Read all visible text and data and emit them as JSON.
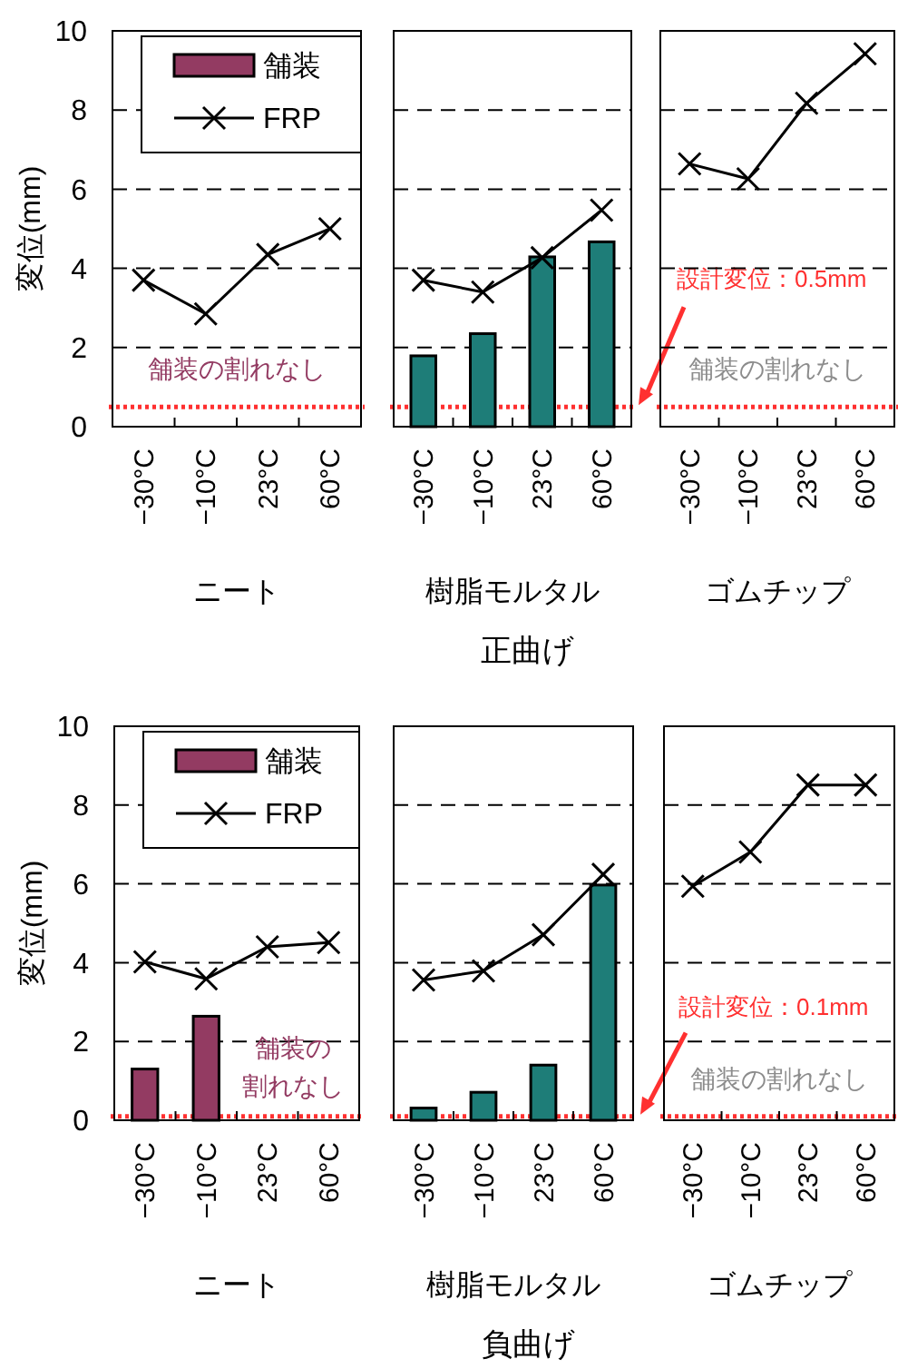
{
  "chart_data": [
    {
      "type": "bar",
      "categories": [
        "−30°C",
        "−10°C",
        "23°C",
        "60°C"
      ],
      "xlabel": "ニート",
      "ylabel": "変位(mm)",
      "ylim": [
        0,
        10
      ],
      "yticks": [
        0,
        2,
        4,
        6,
        8,
        10
      ],
      "grid": "y",
      "legend": "top left",
      "marker": "cross",
      "line_style": "solid",
      "series": [
        {
          "name": "舗装",
          "color": "#933b62",
          "values": [
            null,
            null,
            null,
            null
          ]
        },
        {
          "name": "FRP",
          "type": "line",
          "color": "#000000",
          "values": [
            3.7,
            2.85,
            4.35,
            5.0
          ]
        }
      ],
      "ref_lines": [
        {
          "axis": "y",
          "value": 0.5,
          "color": "#ff3030",
          "line_style": "dotted"
        }
      ],
      "annotations": [
        "舗装の割れなし"
      ]
    },
    {
      "type": "bar",
      "categories": [
        "−30°C",
        "−10°C",
        "23°C",
        "60°C"
      ],
      "xlabel": "樹脂モルタル",
      "title": "正曲げ",
      "ylim": [
        0,
        10
      ],
      "yticks": [
        0,
        2,
        4,
        6,
        8,
        10
      ],
      "tick_labels": "x",
      "grid": "y",
      "marker": "cross",
      "line_style": "solid",
      "series": [
        {
          "color": "#1e7d78",
          "values": [
            1.79,
            2.35,
            4.29,
            4.67
          ]
        },
        {
          "type": "line",
          "color": "#000000",
          "values": [
            3.7,
            3.4,
            4.27,
            5.47
          ]
        }
      ],
      "ref_lines": [
        {
          "axis": "y",
          "value": 0.5,
          "label": "設計変位：0.5mm",
          "color": "#ff3030",
          "line_style": "dotted"
        }
      ]
    },
    {
      "type": "line",
      "categories": [
        "−30°C",
        "−10°C",
        "23°C",
        "60°C"
      ],
      "xlabel": "ゴムチップ",
      "ylim": [
        0,
        10
      ],
      "yticks": [
        0,
        2,
        4,
        6,
        8,
        10
      ],
      "tick_labels": "x",
      "grid": "y",
      "marker": "cross",
      "line_style": "solid",
      "series": [
        {
          "color": "#000000",
          "values": [
            6.64,
            6.26,
            8.17,
            9.42
          ]
        }
      ],
      "ref_lines": [
        {
          "axis": "y",
          "value": 0.5,
          "color": "#ff3030",
          "line_style": "dotted"
        }
      ],
      "annotations": [
        "舗装の割れなし"
      ]
    },
    {
      "type": "bar",
      "categories": [
        "−30°C",
        "−10°C",
        "23°C",
        "60°C"
      ],
      "xlabel": "ニート",
      "ylabel": "変位(mm)",
      "ylim": [
        0,
        10
      ],
      "yticks": [
        0,
        2,
        4,
        6,
        8,
        10
      ],
      "grid": "y",
      "legend": "top left",
      "marker": "cross",
      "line_style": "solid",
      "series": [
        {
          "name": "舗装",
          "color": "#933b62",
          "values": [
            1.3,
            2.64,
            null,
            null
          ]
        },
        {
          "name": "FRP",
          "type": "line",
          "color": "#000000",
          "values": [
            4.02,
            3.59,
            4.4,
            4.51
          ]
        }
      ],
      "ref_lines": [
        {
          "axis": "y",
          "value": 0.1,
          "color": "#ff3030",
          "line_style": "dotted"
        }
      ],
      "annotations": [
        "舗装の",
        "割れなし"
      ]
    },
    {
      "type": "bar",
      "categories": [
        "−30°C",
        "−10°C",
        "23°C",
        "60°C"
      ],
      "xlabel": "樹脂モルタル",
      "title": "負曲げ",
      "ylim": [
        0,
        10
      ],
      "yticks": [
        0,
        2,
        4,
        6,
        8,
        10
      ],
      "tick_labels": "x",
      "grid": "y",
      "marker": "cross",
      "line_style": "solid",
      "series": [
        {
          "color": "#1e7d78",
          "values": [
            0.31,
            0.71,
            1.4,
            5.97
          ]
        },
        {
          "type": "line",
          "color": "#000000",
          "values": [
            3.56,
            3.79,
            4.71,
            6.24
          ]
        }
      ],
      "ref_lines": [
        {
          "axis": "y",
          "value": 0.1,
          "label": "設計変位：0.1mm",
          "color": "#ff3030",
          "line_style": "dotted"
        }
      ]
    },
    {
      "type": "line",
      "categories": [
        "−30°C",
        "−10°C",
        "23°C",
        "60°C"
      ],
      "xlabel": "ゴムチップ",
      "ylim": [
        0,
        10
      ],
      "yticks": [
        0,
        2,
        4,
        6,
        8,
        10
      ],
      "tick_labels": "x",
      "grid": "y",
      "marker": "cross",
      "line_style": "solid",
      "series": [
        {
          "color": "#000000",
          "values": [
            5.94,
            6.81,
            8.51,
            8.51
          ]
        }
      ],
      "ref_lines": [
        {
          "axis": "y",
          "value": 0.1,
          "color": "#ff3030",
          "line_style": "dotted"
        }
      ],
      "annotations": [
        "舗装の割れなし"
      ]
    }
  ]
}
